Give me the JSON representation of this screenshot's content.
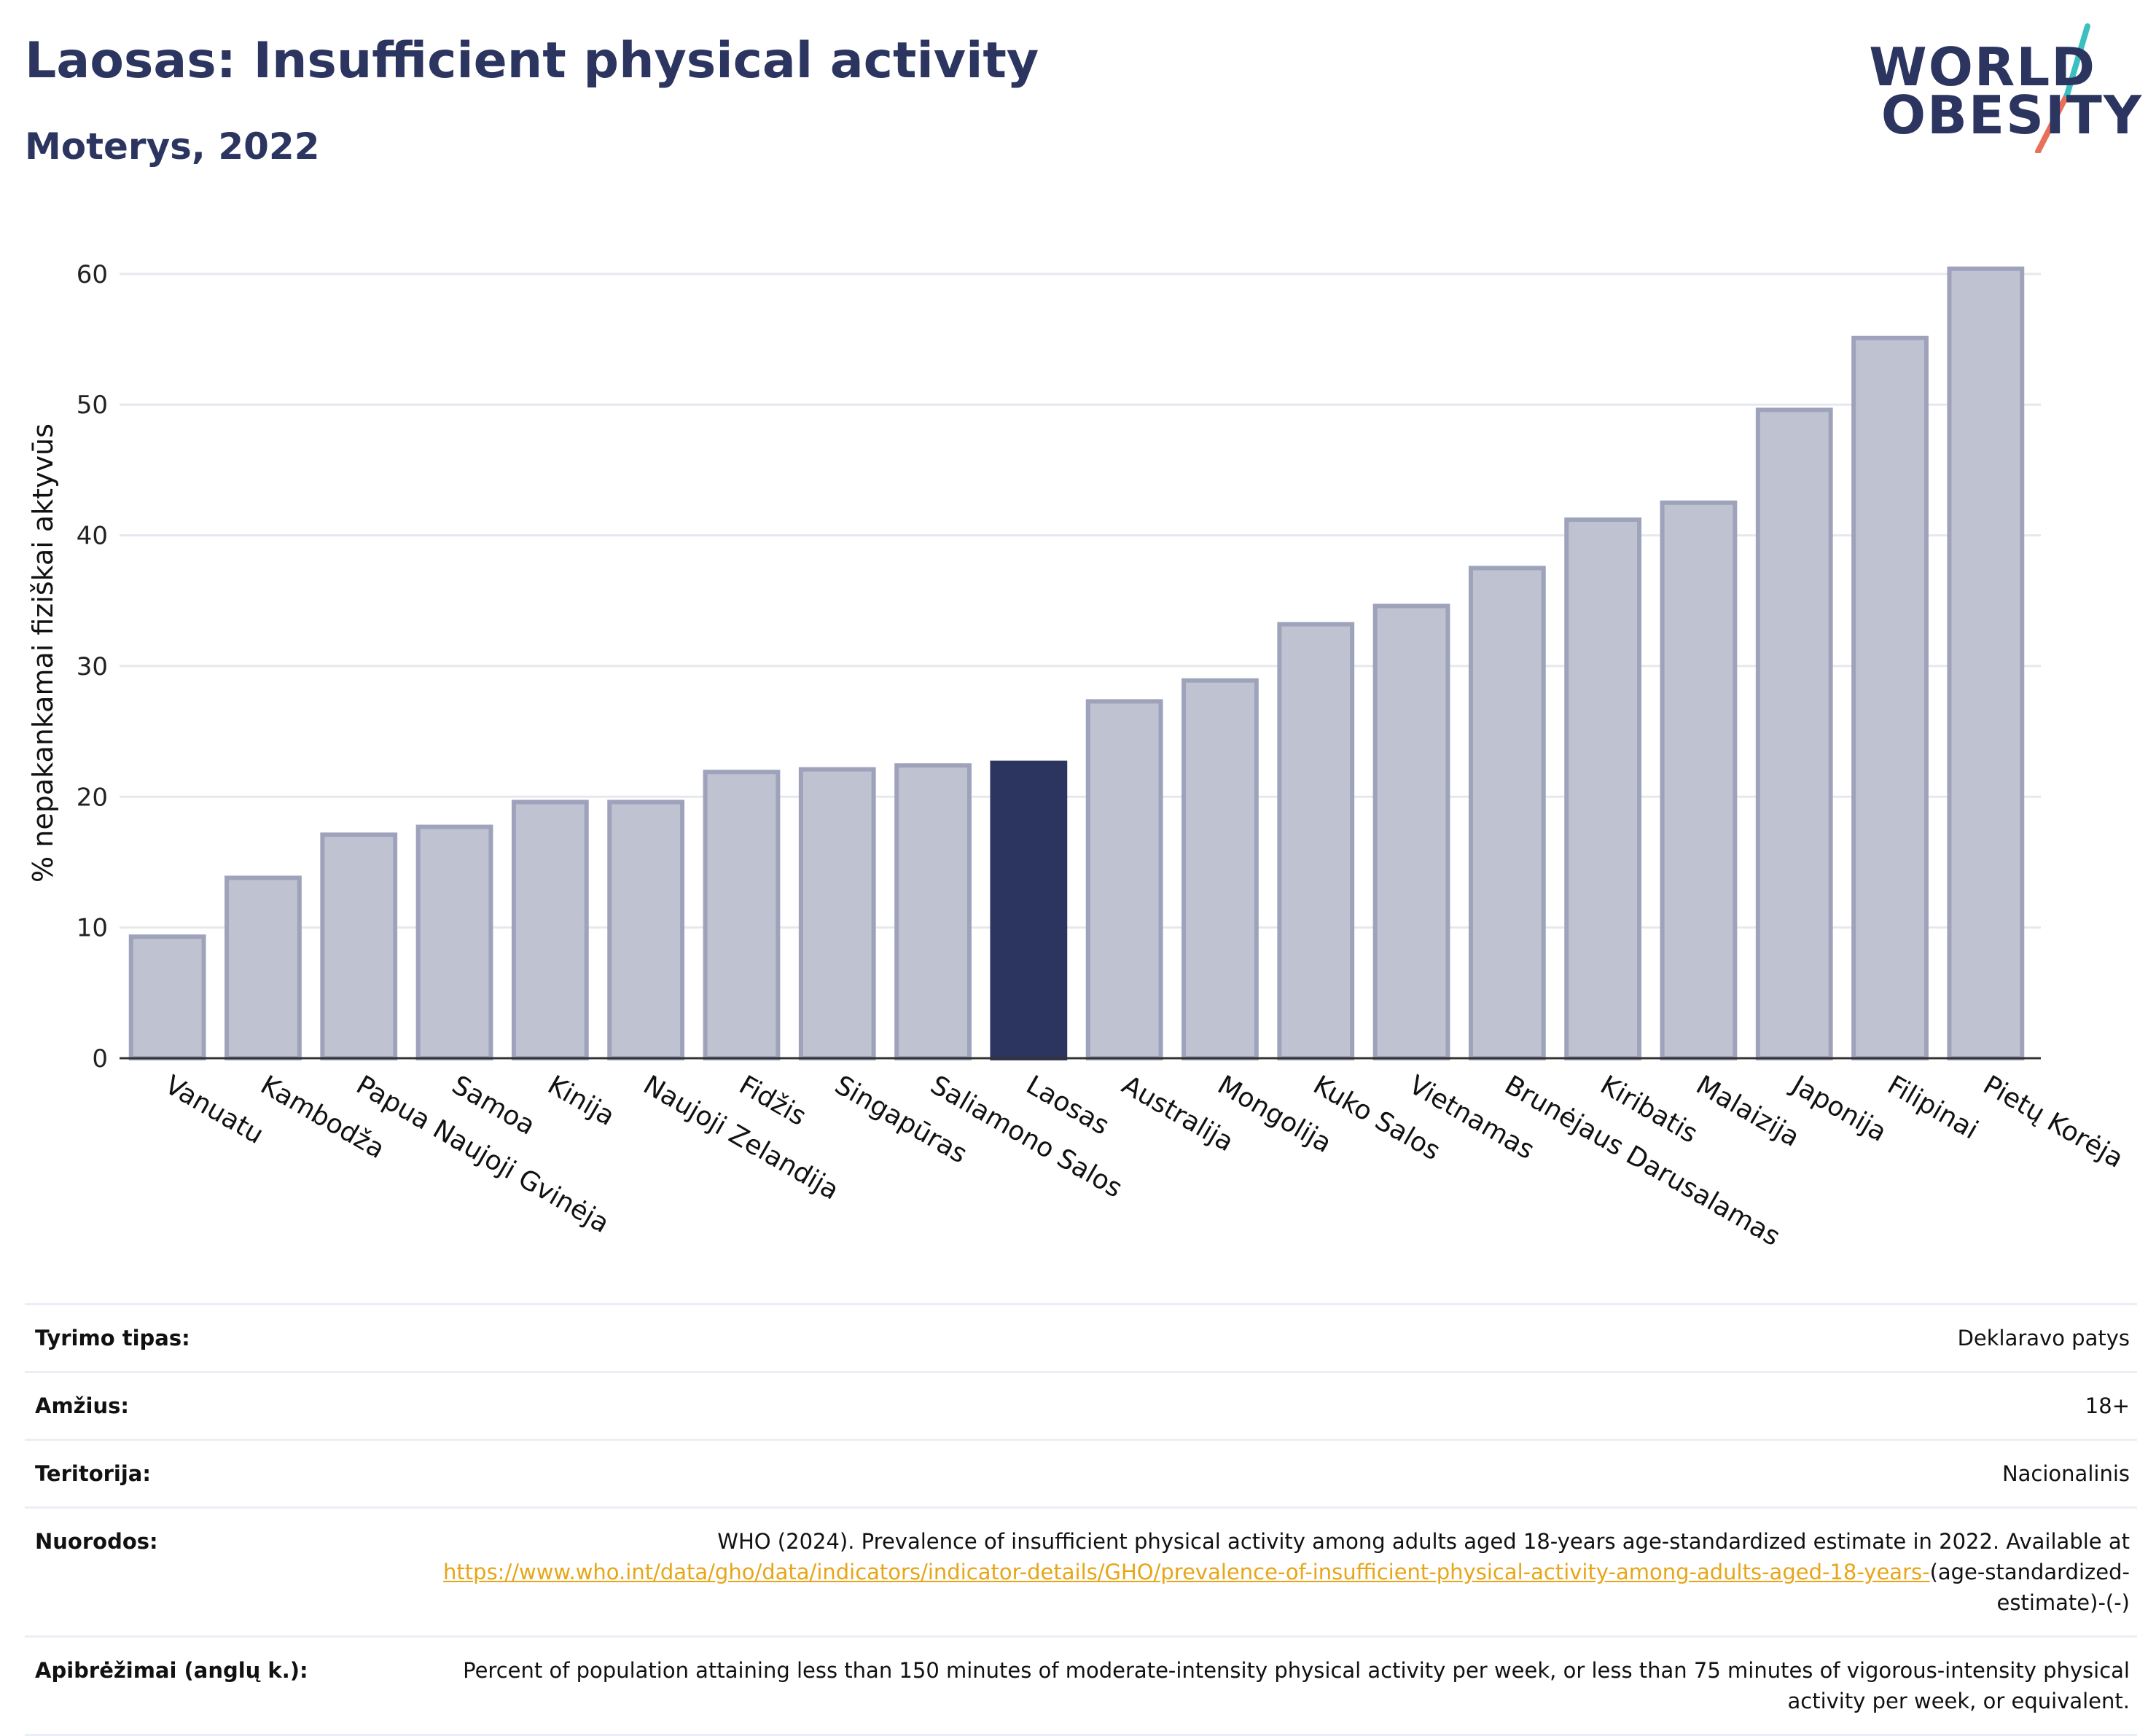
{
  "header": {
    "title": "Laosas: Insufficient physical activity",
    "subtitle": "Moterys, 2022"
  },
  "logo": {
    "line1": "WORLD",
    "line2": "OBESITY",
    "colors": {
      "text": "#2b3560",
      "slash1": "#3bbfbf",
      "slash2": "#e8705a"
    }
  },
  "chart_data": {
    "type": "bar",
    "ylabel": "% nepakankamai fiziškai aktyvūs",
    "ylim": [
      0,
      62
    ],
    "yticks": [
      0,
      10,
      20,
      30,
      40,
      50,
      60
    ],
    "grid": true,
    "highlight": "Laosas",
    "colors": {
      "bar": "#bfc2d0",
      "bar_edge": "#9ea3bb",
      "highlight": "#2b3560"
    },
    "categories": [
      "Vanuatu",
      "Kambodža",
      "Papua Naujoji Gvinėja",
      "Samoa",
      "Kinija",
      "Naujoji Zelandija",
      "Fidžis",
      "Singapūras",
      "Saliamono Salos",
      "Laosas",
      "Australija",
      "Mongolija",
      "Kuko Salos",
      "Vietnamas",
      "Brunėjaus Darusalamas",
      "Kiribatis",
      "Malaizija",
      "Japonija",
      "Filipinai",
      "Pietų Korėja"
    ],
    "values": [
      9.3,
      13.8,
      17.1,
      17.7,
      19.6,
      19.6,
      21.9,
      22.1,
      22.4,
      22.6,
      27.3,
      28.9,
      33.2,
      34.6,
      37.5,
      41.2,
      42.5,
      49.6,
      55.1,
      60.4
    ]
  },
  "info": [
    {
      "label": "Tyrimo tipas:",
      "value": "Deklaravo patys"
    },
    {
      "label": "Amžius:",
      "value": "18+"
    },
    {
      "label": "Teritorija:",
      "value": "Nacionalinis"
    },
    {
      "label": "Nuorodos:",
      "value": "WHO (2024). Prevalence of insufficient physical activity among adults aged 18-years age-standardized estimate in 2022. Available at",
      "link": "https://www.who.int/data/gho/data/indicators/indicator-details/GHO/prevalence-of-insufficient-physical-activity-among-adults-aged-18-years-",
      "suffix": "(age-standardized-estimate)-(-)"
    },
    {
      "label": "Apibrėžimai (anglų k.):",
      "value": "Percent of population attaining less than 150 minutes of moderate-intensity physical activity per week, or less than 75 minutes of vigorous-intensity physical activity per week, or equivalent."
    }
  ]
}
